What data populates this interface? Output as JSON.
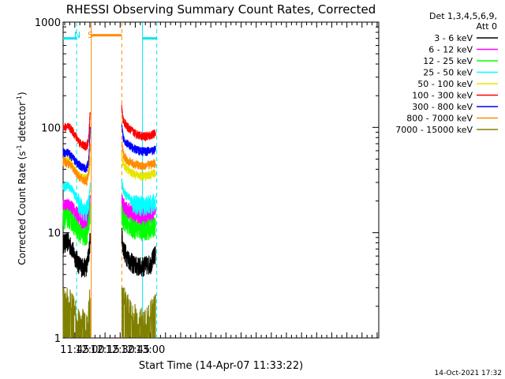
{
  "chart_data": {
    "type": "line",
    "title": "RHESSI Observing Summary Count Rates, Corrected",
    "xlabel": "Start Time (14-Apr-07 11:33:22)",
    "ylabel_main": "Corrected Count Rate (s",
    "ylabel_sup1": "-1",
    "ylabel_mid": " detector",
    "ylabel_sup2": "-1",
    "ylabel_end": ")",
    "y_scale": "log",
    "ylim": [
      1,
      1000
    ],
    "xlim_minutes": [
      693.4,
      1006.6
    ],
    "x_ticks": [
      {
        "minute": 705,
        "label": "11:45"
      },
      {
        "minute": 720,
        "label": "12:00"
      },
      {
        "minute": 735,
        "label": "12:15"
      },
      {
        "minute": 750,
        "label": "12:30"
      },
      {
        "minute": 765,
        "label": "12:45"
      },
      {
        "minute": 780,
        "label": "13:00"
      }
    ],
    "y_ticks": [
      {
        "value": 1,
        "label": "1"
      },
      {
        "value": 10,
        "label": "10"
      },
      {
        "value": 100,
        "label": "100"
      },
      {
        "value": 1000,
        "label": "1000"
      }
    ],
    "legend_header": [
      "Det 1,3,4,5,6,9,",
      "Att 0"
    ],
    "legend_position": "right",
    "annotations": [
      {
        "text": "N",
        "minute": 707.5,
        "color": "#00e5ee"
      },
      {
        "text": "S",
        "minute": 720.4,
        "color": "#ff8c00"
      }
    ],
    "intervals": [
      {
        "kind": "night",
        "color": "#00e5ee",
        "start": 693.4,
        "end": 706.8,
        "level": 700
      },
      {
        "kind": "saa",
        "color": "#ff8c00",
        "start": 721.3,
        "end": 751.6,
        "level": 750
      },
      {
        "kind": "night",
        "color": "#00e5ee",
        "start": 772.2,
        "end": 786.3,
        "level": 700
      }
    ],
    "gap_minutes": [
      721.3,
      751.6
    ],
    "series": [
      {
        "name": "3 - 6 keV",
        "color": "#000000",
        "pre": [
          [
            693.4,
            8
          ],
          [
            698,
            8.3
          ],
          [
            702,
            7.2
          ],
          [
            706,
            5.8
          ],
          [
            710,
            4.9
          ],
          [
            714,
            4.7
          ],
          [
            717,
            4.9
          ],
          [
            719,
            6.5
          ],
          [
            720.3,
            9
          ]
        ],
        "post": [
          [
            751.6,
            10
          ],
          [
            753,
            7.2
          ],
          [
            756,
            6.2
          ],
          [
            760,
            5.4
          ],
          [
            765,
            4.9
          ],
          [
            770,
            4.8
          ],
          [
            775,
            4.9
          ],
          [
            780,
            5.1
          ],
          [
            785.3,
            6.4
          ]
        ]
      },
      {
        "name": "6 - 12 keV",
        "color": "#ff00ff",
        "pre": [
          [
            693.4,
            17
          ],
          [
            698,
            17.5
          ],
          [
            702,
            16.5
          ],
          [
            706,
            15
          ],
          [
            710,
            13.6
          ],
          [
            714,
            13
          ],
          [
            717,
            13.5
          ],
          [
            719,
            16
          ],
          [
            720.3,
            22
          ]
        ],
        "post": [
          [
            751.6,
            20
          ],
          [
            753,
            18
          ],
          [
            756,
            16.5
          ],
          [
            760,
            15.6
          ],
          [
            765,
            14.6
          ],
          [
            770,
            14.1
          ],
          [
            775,
            14.3
          ],
          [
            780,
            14.8
          ],
          [
            785.3,
            15.6
          ]
        ]
      },
      {
        "name": "12 - 25 keV",
        "color": "#00ff00",
        "pre": [
          [
            693.4,
            13.5
          ],
          [
            698,
            14
          ],
          [
            702,
            13
          ],
          [
            706,
            11.5
          ],
          [
            710,
            10
          ],
          [
            714,
            9.2
          ],
          [
            717,
            9.6
          ],
          [
            719,
            12
          ],
          [
            720.3,
            16
          ]
        ],
        "post": [
          [
            751.6,
            15.5
          ],
          [
            753,
            13.5
          ],
          [
            756,
            12.4
          ],
          [
            760,
            11.6
          ],
          [
            765,
            10.9
          ],
          [
            770,
            10.6
          ],
          [
            775,
            10.7
          ],
          [
            780,
            11
          ],
          [
            785.3,
            11.7
          ]
        ]
      },
      {
        "name": "25 - 50 keV",
        "color": "#00ffff",
        "pre": [
          [
            693.4,
            27
          ],
          [
            698,
            28
          ],
          [
            702,
            26
          ],
          [
            706,
            22
          ],
          [
            710,
            18.5
          ],
          [
            714,
            16.5
          ],
          [
            717,
            16.5
          ],
          [
            719,
            20
          ],
          [
            720.3,
            28
          ]
        ],
        "post": [
          [
            751.6,
            31
          ],
          [
            753,
            25
          ],
          [
            756,
            22.5
          ],
          [
            760,
            20.6
          ],
          [
            765,
            19
          ],
          [
            770,
            18.2
          ],
          [
            775,
            18.2
          ],
          [
            780,
            18.7
          ],
          [
            785.3,
            19.6
          ]
        ]
      },
      {
        "name": "50 - 100 keV",
        "color": "#e6e600",
        "pre": [
          [
            693.4,
            47
          ],
          [
            698,
            49
          ],
          [
            702,
            45
          ],
          [
            706,
            38
          ],
          [
            710,
            34
          ],
          [
            714,
            33
          ],
          [
            717,
            33
          ],
          [
            719,
            38
          ],
          [
            720.3,
            48
          ]
        ],
        "post": [
          [
            751.6,
            55
          ],
          [
            753,
            45
          ],
          [
            756,
            41
          ],
          [
            760,
            38
          ],
          [
            765,
            35.5
          ],
          [
            770,
            34.5
          ],
          [
            775,
            34.5
          ],
          [
            780,
            35.5
          ],
          [
            785.3,
            37.5
          ]
        ]
      },
      {
        "name": "100 - 300 keV",
        "color": "#ff0000",
        "pre": [
          [
            693.4,
            100
          ],
          [
            698,
            102
          ],
          [
            702,
            95
          ],
          [
            706,
            82
          ],
          [
            710,
            72
          ],
          [
            714,
            67
          ],
          [
            717,
            66
          ],
          [
            719,
            80
          ],
          [
            720.3,
            150
          ]
        ],
        "post": [
          [
            751.6,
            150
          ],
          [
            753,
            118
          ],
          [
            756,
            104
          ],
          [
            760,
            95
          ],
          [
            765,
            88
          ],
          [
            770,
            84
          ],
          [
            775,
            82
          ],
          [
            780,
            84
          ],
          [
            785.3,
            88
          ]
        ]
      },
      {
        "name": "300 - 800 keV",
        "color": "#0000ff",
        "pre": [
          [
            693.4,
            58
          ],
          [
            698,
            57
          ],
          [
            702,
            53
          ],
          [
            706,
            47
          ],
          [
            710,
            43.5
          ],
          [
            714,
            41
          ],
          [
            717,
            41
          ],
          [
            719,
            50
          ],
          [
            720.3,
            95
          ]
        ],
        "post": [
          [
            751.6,
            100
          ],
          [
            753,
            80
          ],
          [
            756,
            72
          ],
          [
            760,
            66
          ],
          [
            765,
            62
          ],
          [
            770,
            60
          ],
          [
            775,
            59
          ],
          [
            780,
            60
          ],
          [
            785.3,
            61
          ]
        ]
      },
      {
        "name": "800 - 7000 keV",
        "color": "#ff8c00",
        "pre": [
          [
            693.4,
            48
          ],
          [
            698,
            46
          ],
          [
            702,
            42
          ],
          [
            706,
            37
          ],
          [
            710,
            33.5
          ],
          [
            714,
            31.5
          ],
          [
            717,
            31
          ],
          [
            719,
            38
          ],
          [
            720.3,
            70
          ]
        ],
        "post": [
          [
            751.6,
            72
          ],
          [
            753,
            56
          ],
          [
            756,
            50
          ],
          [
            760,
            47
          ],
          [
            765,
            44.5
          ],
          [
            770,
            43.5
          ],
          [
            775,
            43.5
          ],
          [
            780,
            44.5
          ],
          [
            785.3,
            46
          ]
        ]
      },
      {
        "name": "7000 - 15000 keV",
        "color": "#808000",
        "pre": [
          [
            693.4,
            2.5
          ],
          [
            698,
            2.3
          ],
          [
            702,
            1.8
          ],
          [
            706,
            1.6
          ],
          [
            710,
            1.2
          ],
          [
            714,
            1.3
          ],
          [
            717,
            1.1
          ],
          [
            719,
            1.6
          ],
          [
            720.3,
            2.5
          ]
        ],
        "post": [
          [
            751.6,
            2.6
          ],
          [
            753,
            2.2
          ],
          [
            756,
            1.9
          ],
          [
            760,
            1.6
          ],
          [
            765,
            1.4
          ],
          [
            770,
            1.3
          ],
          [
            775,
            1.3
          ],
          [
            780,
            1.5
          ],
          [
            785.3,
            1.8
          ]
        ]
      }
    ],
    "footer_date": "14-Oct-2021 17:32"
  }
}
